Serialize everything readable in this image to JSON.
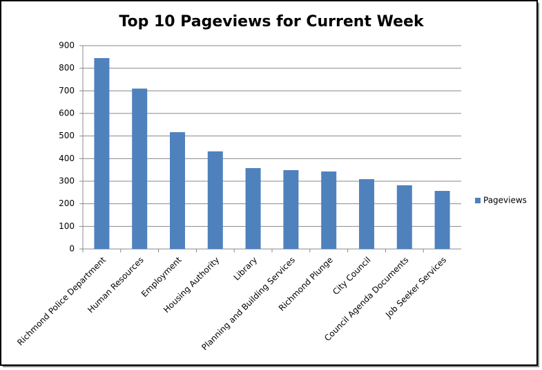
{
  "chart_data": {
    "type": "bar",
    "title": "Top 10 Pageviews for Current Week",
    "categories": [
      "Richmond Police Department",
      "Human Resources",
      "Employment",
      "Housing Authority",
      "Library",
      "Planning and Building Services",
      "Richmond Plunge",
      "City Council",
      "Council Agenda Documents",
      "Job Seeker Services"
    ],
    "series": [
      {
        "name": "Pageviews",
        "color": "#4f81bd",
        "values": [
          845,
          710,
          517,
          432,
          358,
          349,
          343,
          309,
          282,
          257
        ]
      }
    ],
    "ylim": [
      0,
      900
    ],
    "yticks": [
      0,
      100,
      200,
      300,
      400,
      500,
      600,
      700,
      800,
      900
    ],
    "grid": true,
    "legend": "right"
  }
}
